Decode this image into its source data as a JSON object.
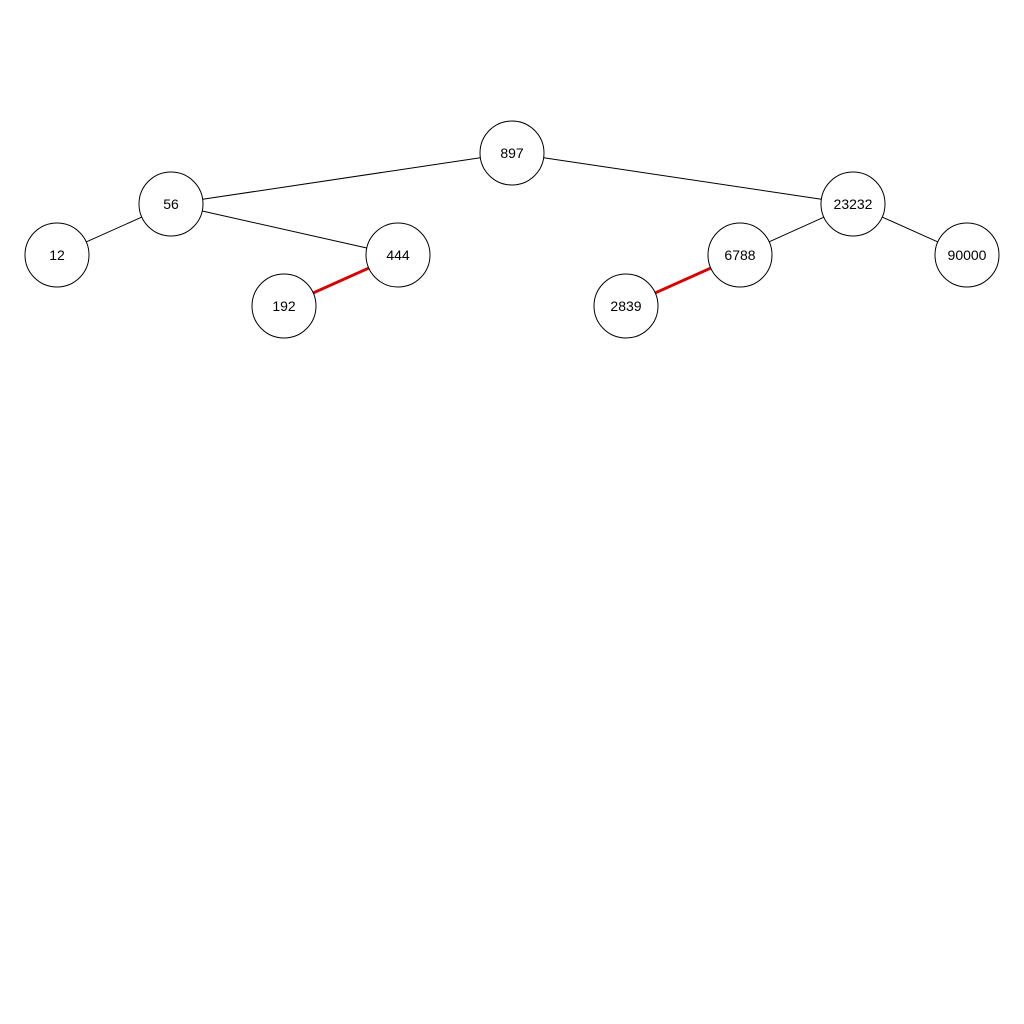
{
  "diagram": {
    "type": "red-black-tree",
    "colors": {
      "black_edge": "#000000",
      "red_edge": "#d80000",
      "node_fill": "#ffffff",
      "node_stroke": "#000000"
    },
    "nodes": [
      {
        "id": "n897",
        "label": "897"
      },
      {
        "id": "n56",
        "label": "56"
      },
      {
        "id": "n23232",
        "label": "23232"
      },
      {
        "id": "n12",
        "label": "12"
      },
      {
        "id": "n444",
        "label": "444"
      },
      {
        "id": "n192",
        "label": "192"
      },
      {
        "id": "n6788",
        "label": "6788"
      },
      {
        "id": "n90000",
        "label": "90000"
      },
      {
        "id": "n2839",
        "label": "2839"
      }
    ],
    "edges": [
      {
        "from": "n897",
        "to": "n56",
        "color": "black"
      },
      {
        "from": "n897",
        "to": "n23232",
        "color": "black"
      },
      {
        "from": "n56",
        "to": "n12",
        "color": "black"
      },
      {
        "from": "n56",
        "to": "n444",
        "color": "black"
      },
      {
        "from": "n444",
        "to": "n192",
        "color": "red"
      },
      {
        "from": "n23232",
        "to": "n6788",
        "color": "black"
      },
      {
        "from": "n23232",
        "to": "n90000",
        "color": "black"
      },
      {
        "from": "n6788",
        "to": "n2839",
        "color": "red"
      }
    ]
  }
}
